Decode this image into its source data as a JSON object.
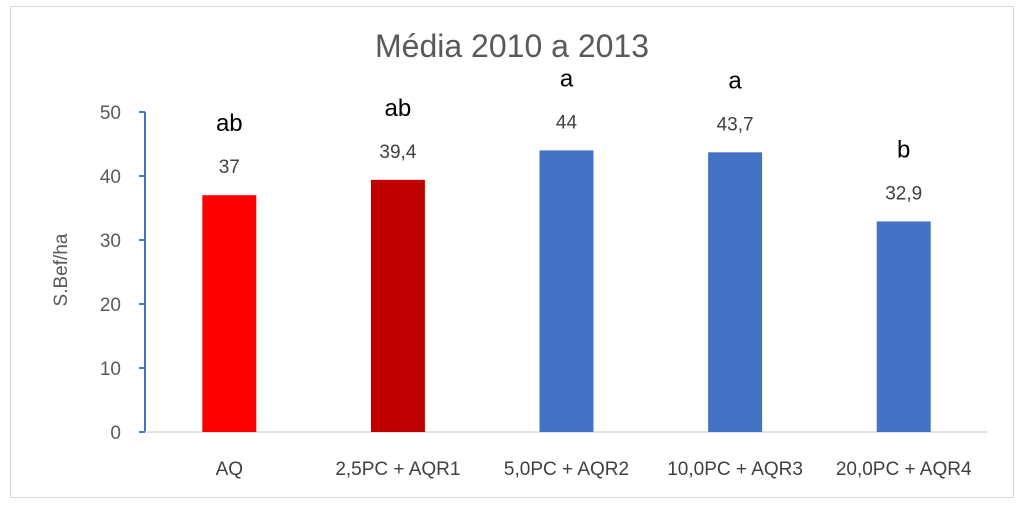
{
  "chart_data": {
    "type": "bar",
    "title": "Média 2010 a 2013",
    "xlabel": "",
    "ylabel": "S.Bef/ha",
    "ylim": [
      0,
      50
    ],
    "yticks": [
      "0",
      "10",
      "20",
      "30",
      "40",
      "50"
    ],
    "categories": [
      "AQ",
      "2,5PC + AQR1",
      "5,0PC + AQR2",
      "10,0PC + AQR3",
      "20,0PC + AQR4"
    ],
    "values": [
      37,
      39.4,
      44,
      43.7,
      32.9
    ],
    "value_labels": [
      "37",
      "39,4",
      "44",
      "43,7",
      "32,9"
    ],
    "significance_letters": [
      "ab",
      "ab",
      "a",
      "a",
      "b"
    ],
    "bar_colors": [
      "#ff0000",
      "#c00000",
      "#4472c4",
      "#4472c4",
      "#4472c4"
    ],
    "axis_color": "#4472c4",
    "grid": false
  }
}
